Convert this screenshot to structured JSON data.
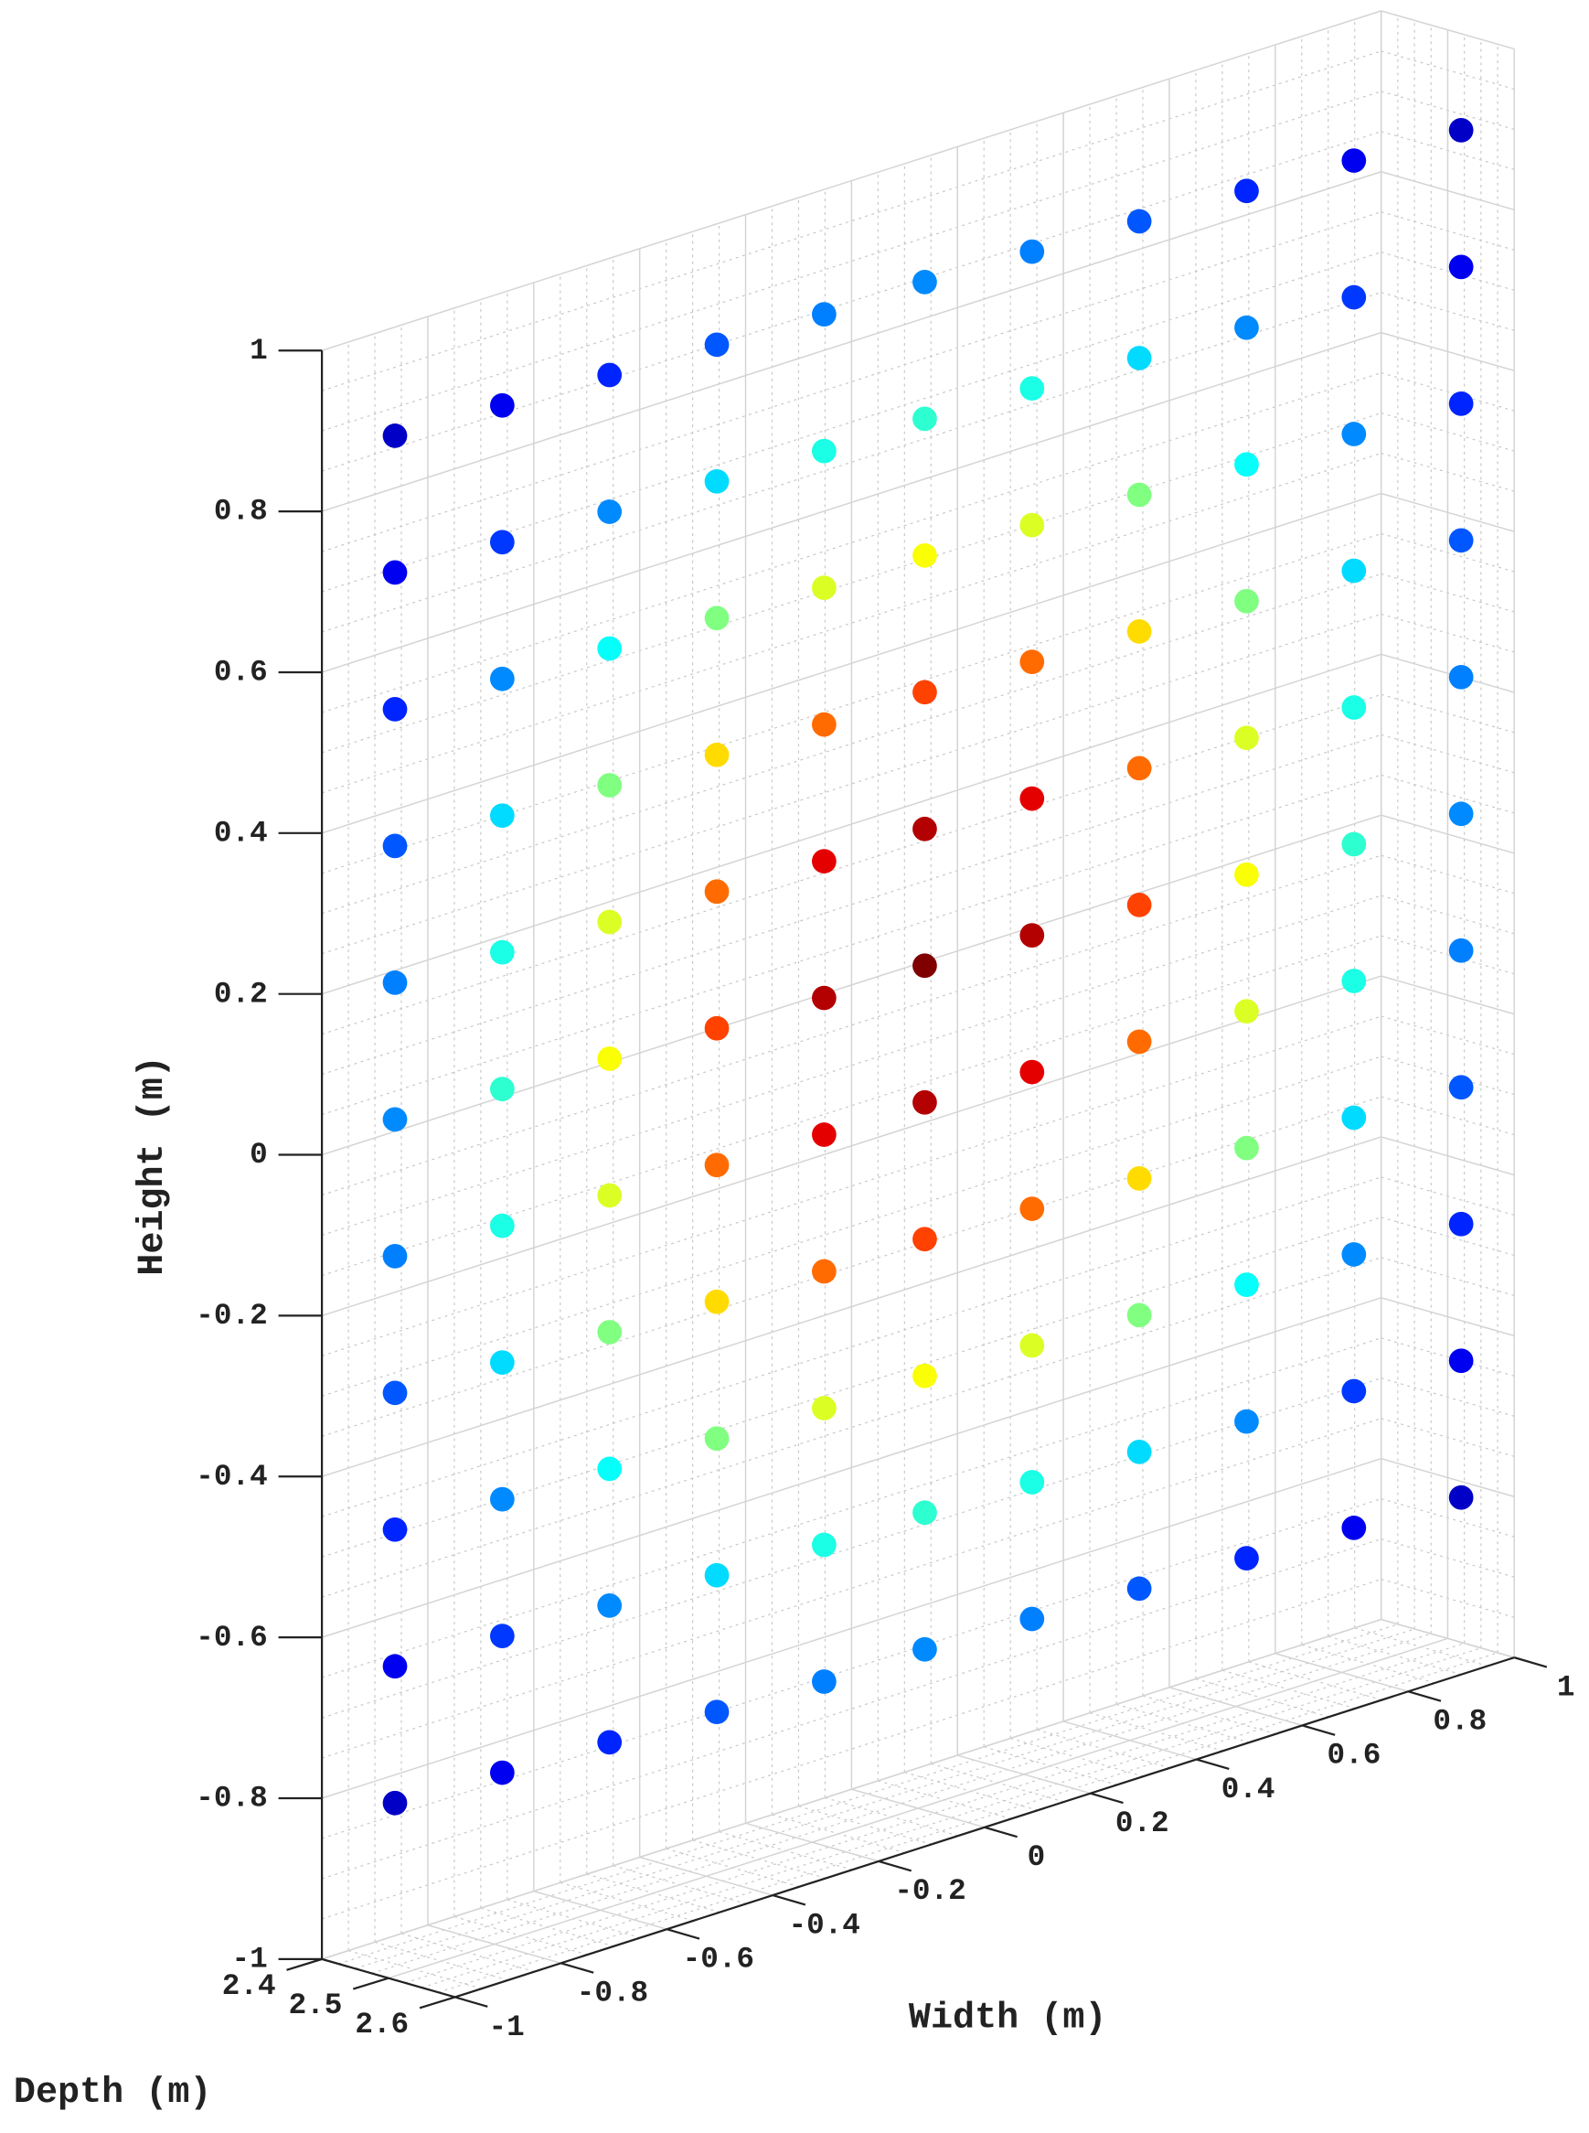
{
  "chart_data": {
    "type": "scatter3d",
    "xlabel": "Width (m)",
    "ylabel": "Depth (m)",
    "zlabel": "Height (m)",
    "xlim": [
      -1,
      1
    ],
    "ylim": [
      2.4,
      2.6
    ],
    "zlim": [
      -1,
      1
    ],
    "xticks": [
      -1,
      -0.8,
      -0.6,
      -0.4,
      -0.2,
      0,
      0.2,
      0.4,
      0.6,
      0.8,
      1
    ],
    "yticks": [
      2.4,
      2.5,
      2.6
    ],
    "zticks": [
      -1,
      -0.8,
      -0.6,
      -0.4,
      -0.2,
      0,
      0.2,
      0.4,
      0.6,
      0.8,
      1
    ],
    "grid": true,
    "minor_grid": true,
    "colormap": "jet",
    "x": [
      -0.95,
      -0.76,
      -0.57,
      -0.38,
      -0.19,
      0,
      0.19,
      0.38,
      0.57,
      0.76,
      0.95
    ],
    "y": [
      2.47,
      2.48,
      2.49,
      2.5,
      2.51,
      2.51,
      2.52,
      2.53,
      2.54,
      2.55,
      2.56
    ],
    "z": [
      -0.8,
      -0.63,
      -0.46,
      -0.29,
      -0.12,
      0.05,
      0.22,
      0.39,
      0.56,
      0.73,
      0.9
    ],
    "c": [
      [
        0.07,
        0.11,
        0.16,
        0.21,
        0.25,
        0.26,
        0.25,
        0.21,
        0.16,
        0.11,
        0.07
      ],
      [
        0.11,
        0.18,
        0.26,
        0.34,
        0.4,
        0.42,
        0.4,
        0.34,
        0.26,
        0.18,
        0.11
      ],
      [
        0.16,
        0.26,
        0.38,
        0.5,
        0.59,
        0.62,
        0.59,
        0.5,
        0.38,
        0.26,
        0.16
      ],
      [
        0.21,
        0.34,
        0.5,
        0.66,
        0.77,
        0.81,
        0.77,
        0.66,
        0.5,
        0.34,
        0.21
      ],
      [
        0.25,
        0.4,
        0.59,
        0.77,
        0.9,
        0.95,
        0.9,
        0.77,
        0.59,
        0.4,
        0.25
      ],
      [
        0.26,
        0.42,
        0.62,
        0.81,
        0.95,
        1,
        0.95,
        0.81,
        0.62,
        0.42,
        0.26
      ],
      [
        0.25,
        0.4,
        0.59,
        0.77,
        0.9,
        0.95,
        0.9,
        0.77,
        0.59,
        0.4,
        0.25
      ],
      [
        0.21,
        0.34,
        0.5,
        0.66,
        0.77,
        0.81,
        0.77,
        0.66,
        0.5,
        0.34,
        0.21
      ],
      [
        0.16,
        0.26,
        0.38,
        0.5,
        0.59,
        0.62,
        0.59,
        0.5,
        0.38,
        0.26,
        0.16
      ],
      [
        0.11,
        0.18,
        0.26,
        0.34,
        0.4,
        0.42,
        0.4,
        0.34,
        0.26,
        0.18,
        0.11
      ],
      [
        0.07,
        0.11,
        0.16,
        0.21,
        0.25,
        0.26,
        0.25,
        0.21,
        0.16,
        0.11,
        0.07
      ]
    ]
  }
}
